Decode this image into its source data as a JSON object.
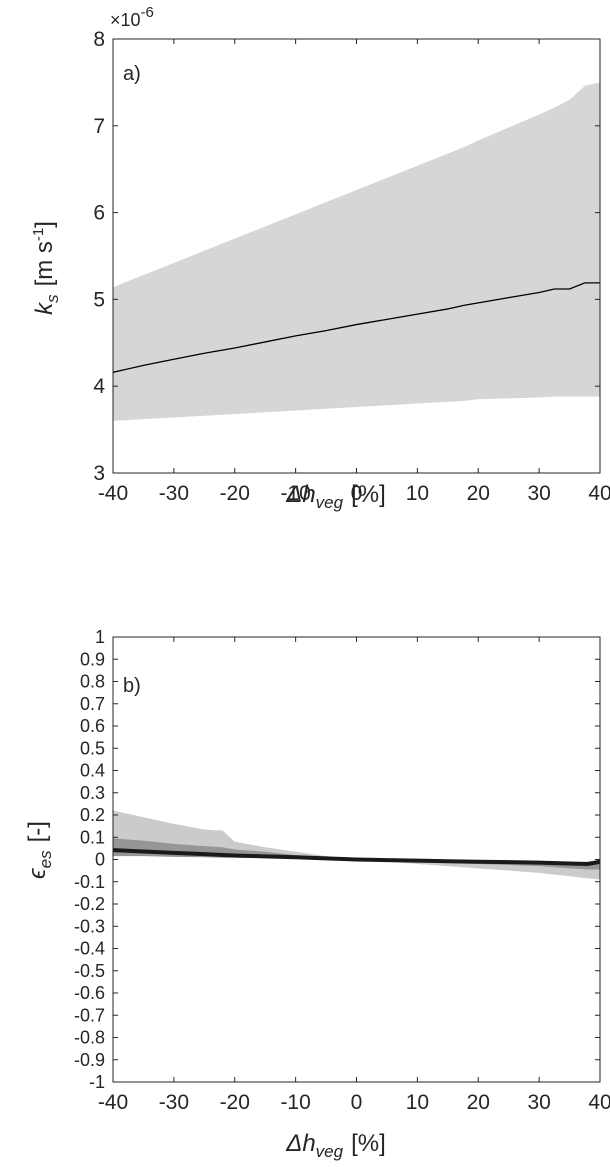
{
  "chart_data": [
    {
      "panel": "a)",
      "type": "area",
      "x": [
        -40,
        -35,
        -30,
        -25,
        -20,
        -15,
        -10,
        -5,
        0,
        5,
        10,
        15,
        17.5,
        20,
        25,
        30,
        32.5,
        35,
        37.5,
        40
      ],
      "series": [
        {
          "role": "upper-band",
          "values": [
            5.14,
            5.28,
            5.42,
            5.56,
            5.7,
            5.84,
            5.98,
            6.12,
            6.26,
            6.4,
            6.54,
            6.68,
            6.75,
            6.83,
            6.98,
            7.13,
            7.21,
            7.3,
            7.46,
            7.5
          ]
        },
        {
          "role": "lower-band",
          "values": [
            3.6,
            3.62,
            3.64,
            3.66,
            3.68,
            3.7,
            3.72,
            3.74,
            3.76,
            3.78,
            3.8,
            3.82,
            3.83,
            3.85,
            3.86,
            3.87,
            3.88,
            3.88,
            3.88,
            3.88
          ]
        },
        {
          "role": "median",
          "values": [
            4.16,
            4.24,
            4.31,
            4.38,
            4.44,
            4.51,
            4.58,
            4.64,
            4.71,
            4.77,
            4.83,
            4.89,
            4.93,
            4.96,
            5.02,
            5.08,
            5.12,
            5.12,
            5.19,
            5.19
          ]
        }
      ],
      "xlim": [
        -40,
        40
      ],
      "ylim": [
        3,
        8
      ],
      "xticks": [
        "-40",
        "-30",
        "-20",
        "-10",
        "0",
        "10",
        "20",
        "30",
        "40"
      ],
      "yticks": [
        "3",
        "4",
        "5",
        "6",
        "7",
        "8"
      ],
      "y_multiplier": "×10",
      "y_multiplier_exp": "-6",
      "xlabel_symbol": "Δh",
      "xlabel_sub": "veg",
      "xlabel_unit": "[%]",
      "ylabel_symbol": "k",
      "ylabel_sub": "s",
      "ylabel_unit_pre": "[m s",
      "ylabel_unit_exp": "-1",
      "ylabel_unit_post": "]",
      "band_color": "#d6d6d6",
      "line_color": "#000000"
    },
    {
      "panel": "b)",
      "type": "area",
      "x": [
        -40,
        -35,
        -30,
        -25,
        -22,
        -20,
        -15,
        -10,
        -5,
        0,
        5,
        10,
        15,
        20,
        25,
        30,
        35,
        38,
        40
      ],
      "series": [
        {
          "role": "outer-upper",
          "values": [
            0.22,
            0.19,
            0.16,
            0.135,
            0.13,
            0.08,
            0.055,
            0.035,
            0.015,
            0.0,
            -0.005,
            -0.008,
            -0.012,
            -0.015,
            -0.018,
            -0.02,
            -0.022,
            -0.02,
            0.0
          ]
        },
        {
          "role": "outer-lower",
          "values": [
            0.02,
            0.02,
            0.015,
            0.015,
            0.01,
            0.01,
            0.008,
            0.005,
            0.0,
            0.0,
            -0.01,
            -0.02,
            -0.03,
            -0.04,
            -0.05,
            -0.06,
            -0.075,
            -0.085,
            -0.09
          ]
        },
        {
          "role": "inner-upper",
          "values": [
            0.095,
            0.085,
            0.07,
            0.06,
            0.055,
            0.045,
            0.035,
            0.02,
            0.01,
            0.0,
            -0.003,
            -0.005,
            -0.008,
            -0.01,
            -0.012,
            -0.012,
            -0.012,
            -0.01,
            -0.005
          ]
        },
        {
          "role": "inner-lower",
          "values": [
            0.015,
            0.015,
            0.012,
            0.01,
            0.008,
            0.008,
            0.006,
            0.004,
            0.0,
            0.0,
            -0.008,
            -0.012,
            -0.016,
            -0.02,
            -0.025,
            -0.03,
            -0.04,
            -0.045,
            -0.045
          ]
        },
        {
          "role": "median",
          "values": [
            0.042,
            0.036,
            0.03,
            0.024,
            0.02,
            0.018,
            0.014,
            0.01,
            0.005,
            0.0,
            -0.003,
            -0.005,
            -0.008,
            -0.01,
            -0.012,
            -0.014,
            -0.018,
            -0.02,
            -0.01
          ]
        }
      ],
      "xlim": [
        -40,
        40
      ],
      "ylim": [
        -1,
        1
      ],
      "xticks": [
        "-40",
        "-30",
        "-20",
        "-10",
        "0",
        "10",
        "20",
        "30",
        "40"
      ],
      "yticks": [
        "-1",
        "-0.9",
        "-0.8",
        "-0.7",
        "-0.6",
        "-0.5",
        "-0.4",
        "-0.3",
        "-0.2",
        "-0.1",
        "0",
        "0.1",
        "0.2",
        "0.3",
        "0.4",
        "0.5",
        "0.6",
        "0.7",
        "0.8",
        "0.9",
        "1"
      ],
      "xlabel_symbol": "Δh",
      "xlabel_sub": "veg",
      "xlabel_unit": "[%]",
      "ylabel_symbol": "ϵ",
      "ylabel_sub": "es",
      "ylabel_unit": "[-]",
      "outer_band_color": "#cbcbcb",
      "inner_band_color": "#969696",
      "line_color": "#1a1a1a"
    }
  ]
}
